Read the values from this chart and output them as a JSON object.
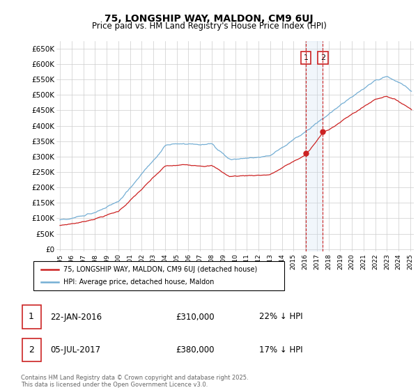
{
  "title": "75, LONGSHIP WAY, MALDON, CM9 6UJ",
  "subtitle": "Price paid vs. HM Land Registry's House Price Index (HPI)",
  "yticks": [
    0,
    50000,
    100000,
    150000,
    200000,
    250000,
    300000,
    350000,
    400000,
    450000,
    500000,
    550000,
    600000,
    650000
  ],
  "ylim": [
    -8000,
    675000
  ],
  "xlim_start": 1994.7,
  "xlim_end": 2025.3,
  "hpi_color": "#74aed4",
  "price_color": "#cc2222",
  "vline1_x": 2016.056,
  "vline2_x": 2017.51,
  "vline_color": "#cc2222",
  "vline_fill_color": "#c8dcf0",
  "annotation1_label": "1",
  "annotation2_label": "2",
  "legend_label1": "75, LONGSHIP WAY, MALDON, CM9 6UJ (detached house)",
  "legend_label2": "HPI: Average price, detached house, Maldon",
  "table_row1": [
    "1",
    "22-JAN-2016",
    "£310,000",
    "22% ↓ HPI"
  ],
  "table_row2": [
    "2",
    "05-JUL-2017",
    "£380,000",
    "17% ↓ HPI"
  ],
  "footer": "Contains HM Land Registry data © Crown copyright and database right 2025.\nThis data is licensed under the Open Government Licence v3.0.",
  "background_color": "#ffffff",
  "grid_color": "#cccccc",
  "sale1_year": 2016.056,
  "sale1_price": 310000,
  "sale2_year": 2017.51,
  "sale2_price": 380000
}
